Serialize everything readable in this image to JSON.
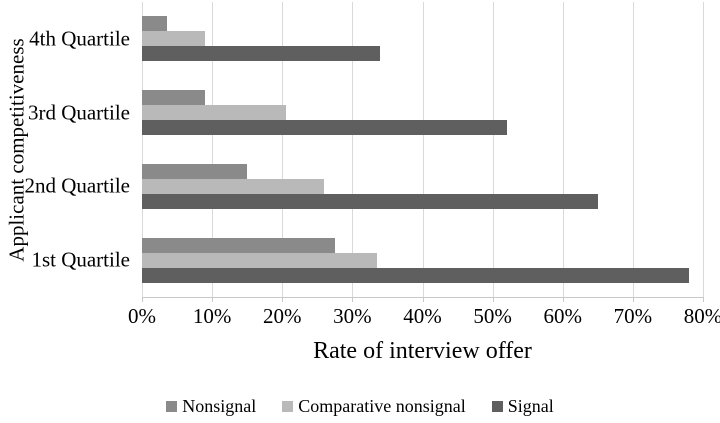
{
  "chart_data": {
    "type": "bar",
    "orientation": "horizontal",
    "title": "",
    "xlabel": "Rate of interview offer",
    "ylabel": "Applicant competitiveness",
    "categories": [
      "4th Quartile",
      "3rd Quartile",
      "2nd Quartile",
      "1st Quartile"
    ],
    "series": [
      {
        "name": "Nonsignal",
        "color": "#8a8a8a",
        "values": [
          3.5,
          9,
          15,
          27.5
        ]
      },
      {
        "name": "Comparative nonsignal",
        "color": "#b9b9b9",
        "values": [
          9,
          20.5,
          26,
          33.5
        ]
      },
      {
        "name": "Signal",
        "color": "#5f5f5f",
        "values": [
          34,
          52,
          65,
          78
        ]
      }
    ],
    "xlim": [
      0,
      80
    ],
    "x_ticks": [
      "0%",
      "10%",
      "20%",
      "30%",
      "40%",
      "50%",
      "60%",
      "70%",
      "80%"
    ],
    "grid": true,
    "legend_position": "bottom",
    "colors": {
      "gridline": "#d9d9d9",
      "axis_line": "#c9c9c9",
      "text": "#000000",
      "background": "#ffffff"
    }
  }
}
